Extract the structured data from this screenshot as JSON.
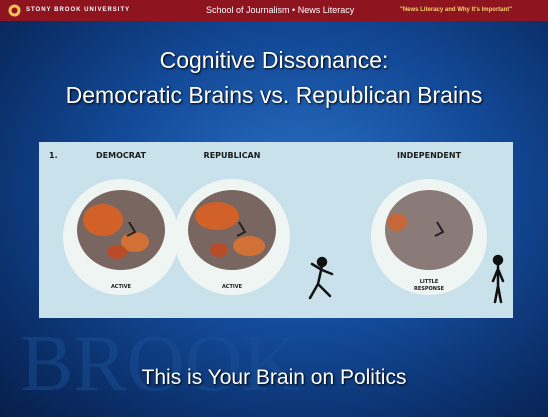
{
  "header": {
    "university": "STONY BROOK UNIVERSITY",
    "center": "School of Journalism • News Literacy",
    "right": "\"News Literacy and Why It's Important\""
  },
  "title": [
    "Cognitive Dissonance:",
    "Democratic Brains vs. Republican Brains"
  ],
  "panel": {
    "number": "1.",
    "columns": [
      "DEMOCRAT",
      "REPUBLICAN",
      "INDEPENDENT"
    ],
    "responses": [
      [
        "ACTIVE"
      ],
      [
        "ACTIVE"
      ],
      [
        "LITTLE",
        "RESPONSE"
      ]
    ]
  },
  "caption": "This is Your Brain on Politics"
}
